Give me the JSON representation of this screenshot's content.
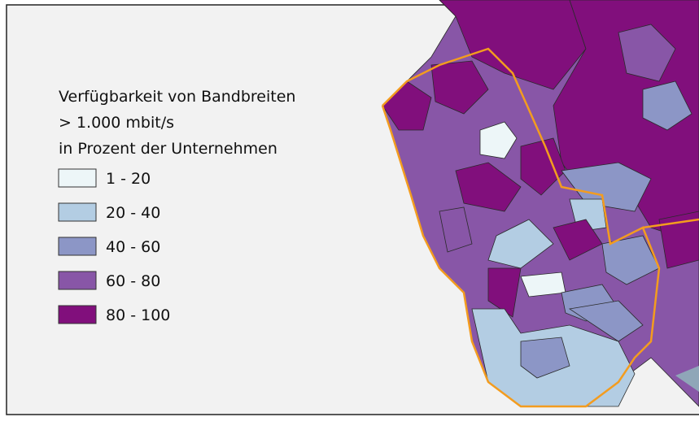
{
  "legend": {
    "title": [
      "Verfügbarkeit von Bandbreiten",
      "> 1.000 mbit/s",
      "in Prozent der Unternehmen"
    ],
    "entries": [
      {
        "label": "1 - 20",
        "color": "#edf6f8"
      },
      {
        "label": "20 - 40",
        "color": "#b3cde3"
      },
      {
        "label": "40 - 60",
        "color": "#8c96c6"
      },
      {
        "label": "60 - 80",
        "color": "#8856a7"
      },
      {
        "label": "80 - 100",
        "color": "#810f7c"
      }
    ]
  }
}
